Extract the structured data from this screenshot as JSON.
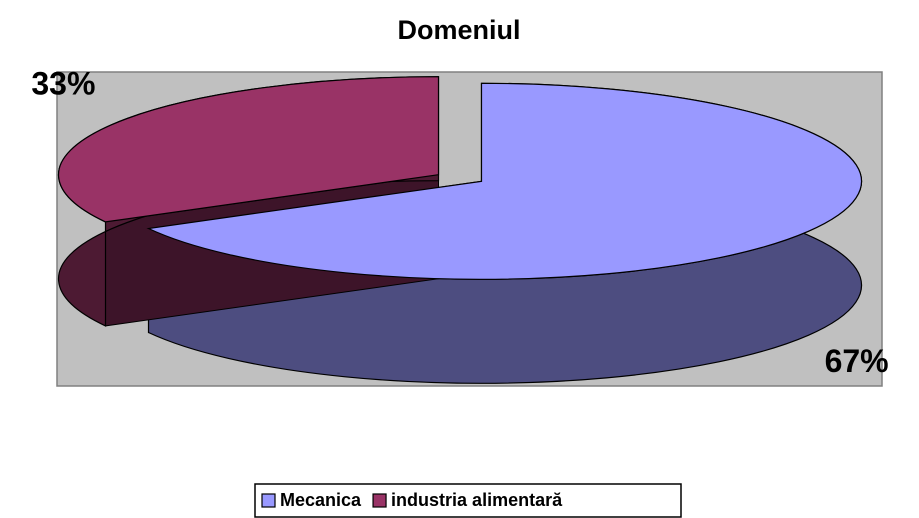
{
  "chart_data": {
    "type": "pie3d",
    "title": "Domeniul",
    "categories": [
      "Mecanica",
      "industria alimentară"
    ],
    "values": [
      67,
      33
    ],
    "value_labels": [
      "67%",
      "33%"
    ],
    "colors": [
      "#9999ff",
      "#993366"
    ],
    "legend": "bottom"
  }
}
